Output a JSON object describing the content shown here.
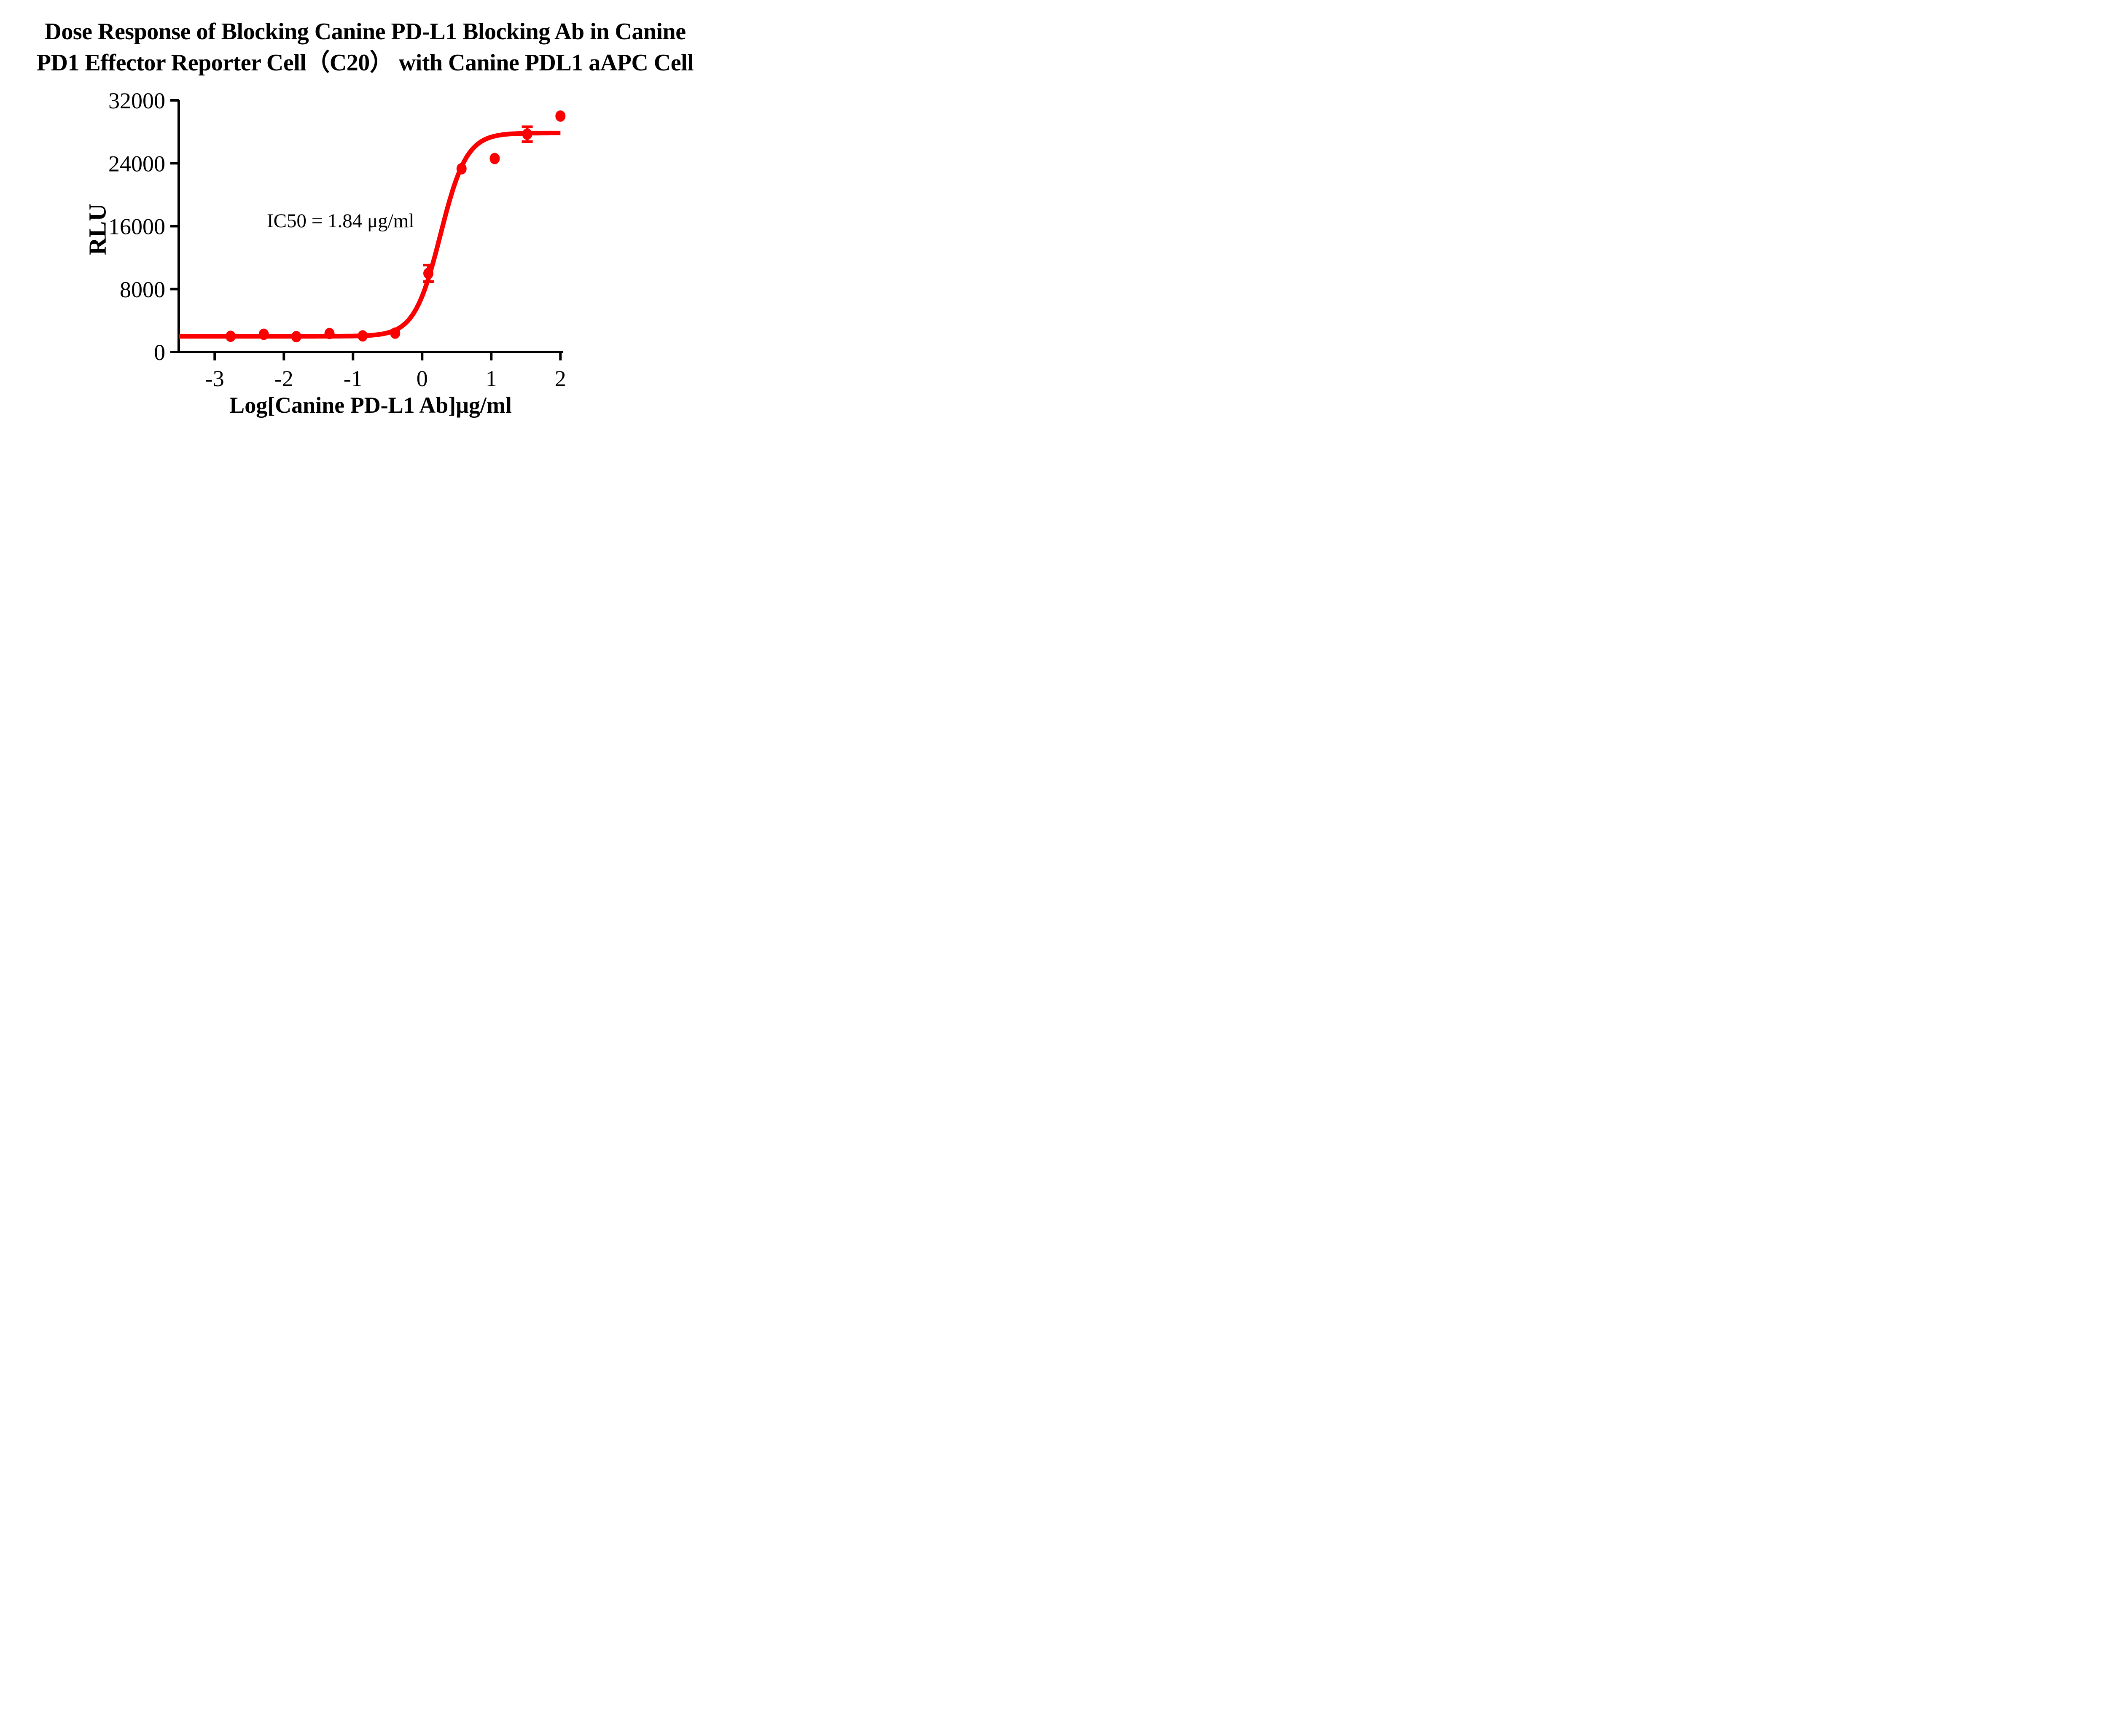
{
  "title": {
    "line1": "Dose Response of Blocking Canine PD-L1 Blocking Ab in Canine",
    "line2": "PD1 Effector Reporter Cell（C20） with Canine PDL1 aAPC Cell"
  },
  "colors": {
    "series_red": "#FB0000",
    "axis_black": "#000000",
    "background": "#ffffff"
  },
  "chart_data": {
    "type": "scatter",
    "title": "Dose Response of Blocking Canine PD-L1 Blocking Ab in Canine PD1 Effector Reporter Cell（C20） with Canine PDL1 aAPC Cell",
    "xlabel": "Log[Canine PD-L1 Ab]μg/ml",
    "ylabel": "RLU",
    "annotation": "IC50 = 1.84 μg/ml",
    "ic50_ugml": 1.84,
    "xlim": [
      -3.52,
      2.04
    ],
    "ylim": [
      0,
      32000
    ],
    "x_ticks": [
      -3,
      -2,
      -1,
      0,
      1,
      2
    ],
    "y_ticks": [
      0,
      8000,
      16000,
      24000,
      32000
    ],
    "grid": false,
    "legend_position": "none",
    "series": [
      {
        "name": "Canine PD-L1 Blocking Ab",
        "color": "#FB0000",
        "marker": "circle",
        "points": [
          {
            "x": -2.77,
            "y": 2000
          },
          {
            "x": -2.29,
            "y": 2250
          },
          {
            "x": -1.82,
            "y": 1950
          },
          {
            "x": -1.34,
            "y": 2350
          },
          {
            "x": -0.86,
            "y": 2050
          },
          {
            "x": -0.39,
            "y": 2400
          },
          {
            "x": 0.09,
            "y": 10000,
            "err": 1050
          },
          {
            "x": 0.57,
            "y": 23300
          },
          {
            "x": 1.05,
            "y": 24600
          },
          {
            "x": 1.52,
            "y": 27700,
            "err": 950
          },
          {
            "x": 2.0,
            "y": 30000
          }
        ]
      }
    ],
    "fit_curve": {
      "model": "4PL sigmoidal",
      "bottom": 2000,
      "top": 27850,
      "logIC50": 0.265,
      "hillslope": 2.3,
      "x_range": [
        -3.52,
        2.0
      ]
    }
  }
}
